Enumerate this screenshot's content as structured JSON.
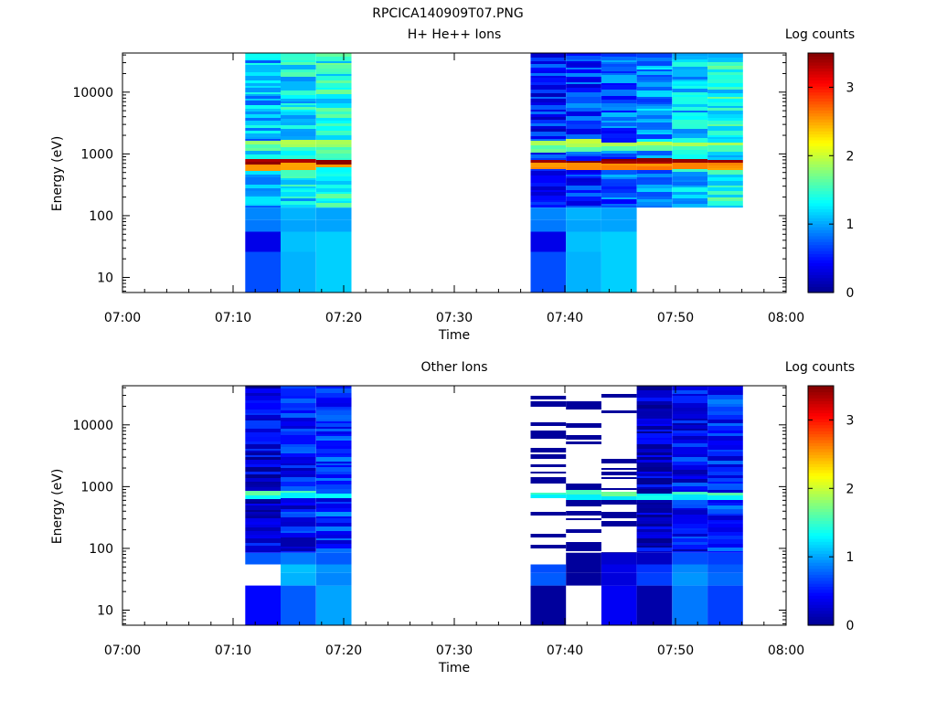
{
  "figure_title": "RPCICA140909T07.PNG",
  "colormap": [
    "#00008f",
    "#0000ff",
    "#0080ff",
    "#00ffff",
    "#80ff80",
    "#ffff00",
    "#ff8000",
    "#ff0000",
    "#800000"
  ],
  "chart_data": [
    {
      "type": "heatmap",
      "title": "H+ He++ Ions",
      "xlabel": "Time",
      "ylabel": "Energy (eV)",
      "colorbar_label": "Log counts",
      "colorbar_range": [
        0,
        3.5
      ],
      "colorbar_ticks": [
        "0",
        "1",
        "2",
        "3"
      ],
      "colorbar_tick_values": [
        0,
        1,
        2,
        3
      ],
      "x_ticks": [
        "07:00",
        "07:10",
        "07:20",
        "07:30",
        "07:40",
        "07:50",
        "08:00"
      ],
      "x_range_minutes": [
        0,
        60
      ],
      "y_scale": "log",
      "y_range": [
        5.7,
        43000
      ],
      "y_ticks": [
        "10",
        "100",
        "1000",
        "10000"
      ],
      "y_tick_values": [
        10,
        100,
        1000,
        10000
      ],
      "time_bins_minutes": [
        [
          11.1,
          14.3
        ],
        [
          14.3,
          17.5
        ],
        [
          17.5,
          20.7
        ],
        [
          36.9,
          40.1
        ],
        [
          40.1,
          43.3
        ],
        [
          43.3,
          46.5
        ],
        [
          46.5,
          49.7
        ],
        [
          49.7,
          52.9
        ],
        [
          52.9,
          56.1
        ]
      ],
      "low_energy_bins_eV": [
        [
          5.7,
          26
        ],
        [
          26,
          55
        ],
        [
          55,
          85
        ],
        [
          85,
          135
        ]
      ],
      "low_energy_values": [
        [
          0.7,
          1.05,
          1.15
        ],
        [
          0.35,
          1.1,
          1.15
        ],
        [
          0.85,
          1.0,
          1.0
        ],
        [
          0.9,
          1.05,
          1.0
        ],
        [
          0.05,
          0.35,
          0.15,
          1.0,
          1.05,
          0.9
        ],
        [
          0.15,
          0.2,
          0.05,
          0.9,
          1.1,
          1.2
        ],
        [
          0.2,
          0.3,
          0.7,
          0.8,
          0.9,
          1.0
        ],
        [
          0.25,
          0.35,
          0.5,
          0.6,
          0.75,
          0.8
        ]
      ],
      "band_levels_eV": [
        {
          "energy": 1450,
          "value": 1.9
        },
        {
          "energy": 1200,
          "value": 1.6
        },
        {
          "energy": 740,
          "value": 3.4
        },
        {
          "energy": 620,
          "value": 2.6
        }
      ],
      "upper_band_tint": [
        1.05,
        1.25,
        1.4,
        0.5,
        0.6,
        0.75,
        0.95,
        1.15,
        1.35
      ]
    },
    {
      "type": "heatmap",
      "title": "Other Ions",
      "xlabel": "Time",
      "ylabel": "Energy (eV)",
      "colorbar_label": "Log counts",
      "colorbar_range": [
        0,
        3.5
      ],
      "colorbar_ticks": [
        "0",
        "1",
        "2",
        "3"
      ],
      "colorbar_tick_values": [
        0,
        1,
        2,
        3
      ],
      "x_ticks": [
        "07:00",
        "07:10",
        "07:20",
        "07:30",
        "07:40",
        "07:50",
        "08:00"
      ],
      "x_range_minutes": [
        0,
        60
      ],
      "y_scale": "log",
      "y_range": [
        5.7,
        43000
      ],
      "y_ticks": [
        "10",
        "100",
        "1000",
        "10000"
      ],
      "y_tick_values": [
        10,
        100,
        1000,
        10000
      ],
      "time_bins_minutes": [
        [
          11.1,
          14.3
        ],
        [
          14.3,
          17.5
        ],
        [
          17.5,
          20.7
        ],
        [
          36.9,
          40.1
        ],
        [
          40.1,
          43.3
        ],
        [
          43.3,
          46.5
        ],
        [
          46.5,
          49.7
        ],
        [
          49.7,
          52.9
        ],
        [
          52.9,
          56.1
        ]
      ],
      "low_energy_bins_eV": [
        [
          5.7,
          25
        ],
        [
          25,
          40
        ],
        [
          40,
          55
        ],
        [
          55,
          85
        ]
      ],
      "low_energy_values": [
        [
          0.45,
          0.75,
          1.0,
          0.05,
          null,
          0.4,
          0.1,
          0.85,
          0.65
        ],
        [
          null,
          1.05,
          0.9,
          0.75,
          0.05,
          0.3,
          0.65,
          0.95,
          0.8
        ],
        [
          null,
          1.1,
          0.95,
          0.7,
          0.05,
          0.35,
          0.6,
          0.9,
          0.75
        ],
        [
          0.75,
          0.85,
          0.75,
          null,
          0.05,
          0.25,
          0.2,
          0.7,
          0.65
        ]
      ],
      "band_levels_eV": [
        {
          "energy": 750,
          "value": 1.6
        },
        {
          "energy": 680,
          "value": 1.3
        }
      ],
      "upper_band_tint": [
        0.3,
        0.45,
        0.6,
        0.05,
        0.05,
        0.05,
        0.25,
        0.45,
        0.55
      ],
      "sparse_columns": [
        3,
        4,
        5
      ]
    }
  ]
}
